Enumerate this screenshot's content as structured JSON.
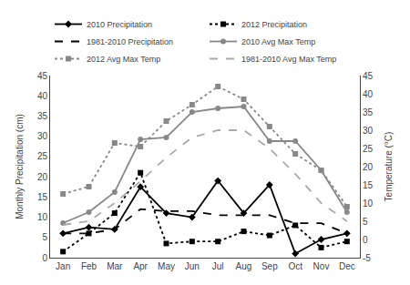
{
  "chart_data": {
    "type": "line",
    "categories": [
      "Jan",
      "Feb",
      "Mar",
      "Apr",
      "May",
      "Jun",
      "Jul",
      "Aug",
      "Sep",
      "Oct",
      "Nov",
      "Dec"
    ],
    "ylabel": "Monthly Precipitation (cm)",
    "y2label": "Temperature (°C)",
    "ylim": [
      0,
      45
    ],
    "yticks": [
      0,
      5,
      10,
      15,
      20,
      25,
      30,
      35,
      40,
      45
    ],
    "y2lim": [
      -5,
      45
    ],
    "y2ticks": [
      -5,
      0,
      5,
      10,
      15,
      20,
      25,
      30,
      35,
      40,
      45
    ],
    "grid": false,
    "legend": "top",
    "series": [
      {
        "name": "2010 Precipitation",
        "color": "#000000",
        "line_style": "solid",
        "marker": "diamond",
        "values": [
          6,
          7.5,
          7,
          17.5,
          11,
          10,
          19,
          11,
          18,
          1,
          4.5,
          6
        ]
      },
      {
        "name": "2012 Precipitation",
        "color": "#000000",
        "line_style": "dotted",
        "marker": "square",
        "values": [
          1.5,
          6,
          11,
          21,
          3.5,
          4,
          4,
          6.5,
          5.5,
          8,
          2.5,
          4
        ]
      },
      {
        "name": "1981-2010 Precipitation",
        "color": "#000000",
        "line_style": "dashed",
        "marker": "none",
        "values": [
          6,
          6,
          7,
          12,
          11.5,
          11.5,
          10.5,
          10.5,
          10.5,
          8.5,
          8.5,
          6
        ]
      },
      {
        "name": "2010 Avg Max Temp",
        "color": "#888888",
        "line_style": "solid",
        "marker": "circle",
        "axis": "y2",
        "values": [
          4.5,
          7.5,
          13,
          27.5,
          28,
          35,
          36,
          36.5,
          27,
          27,
          19,
          7.5
        ]
      },
      {
        "name": "2012 Avg Max Temp",
        "color": "#888888",
        "line_style": "dotted",
        "marker": "square",
        "axis": "y2",
        "values": [
          12.5,
          14.5,
          26.5,
          25.5,
          32.5,
          37,
          42,
          38.5,
          31,
          23.5,
          19,
          9
        ]
      },
      {
        "name": "1981-2010 Avg Max Temp",
        "color": "#aaaaaa",
        "line_style": "dashed",
        "marker": "none",
        "axis": "y2",
        "values": [
          4,
          5,
          10,
          16,
          22.5,
          28,
          30,
          30,
          25,
          18,
          10,
          5
        ]
      }
    ]
  }
}
